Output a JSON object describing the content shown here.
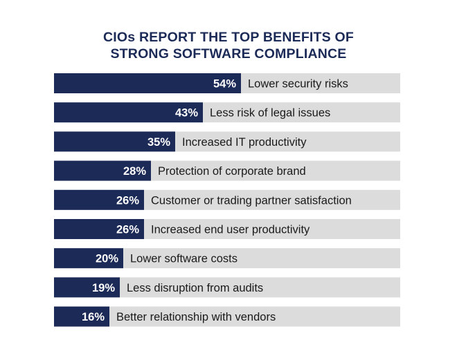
{
  "chart_data": {
    "type": "bar",
    "orientation": "horizontal",
    "title_lines": [
      "CIOs REPORT THE TOP BENEFITS OF",
      "STRONG SOFTWARE COMPLIANCE"
    ],
    "categories": [
      "Lower security risks",
      "Less risk of legal issues",
      "Increased IT productivity",
      "Protection of corporate brand",
      "Customer or trading partner satisfaction",
      "Increased end user productivity",
      "Lower software costs",
      "Less disruption from audits",
      "Better relationship with vendors"
    ],
    "values": [
      54,
      43,
      35,
      28,
      26,
      26,
      20,
      19,
      16
    ],
    "value_labels": [
      "54%",
      "43%",
      "35%",
      "28%",
      "26%",
      "26%",
      "20%",
      "19%",
      "16%"
    ],
    "xlim": [
      0,
      100
    ],
    "colors": {
      "bar": "#1c2a57",
      "track": "#dcdcdd",
      "title": "#1c2a57",
      "value_text": "#ffffff",
      "label_text": "#1a1a1a"
    }
  }
}
